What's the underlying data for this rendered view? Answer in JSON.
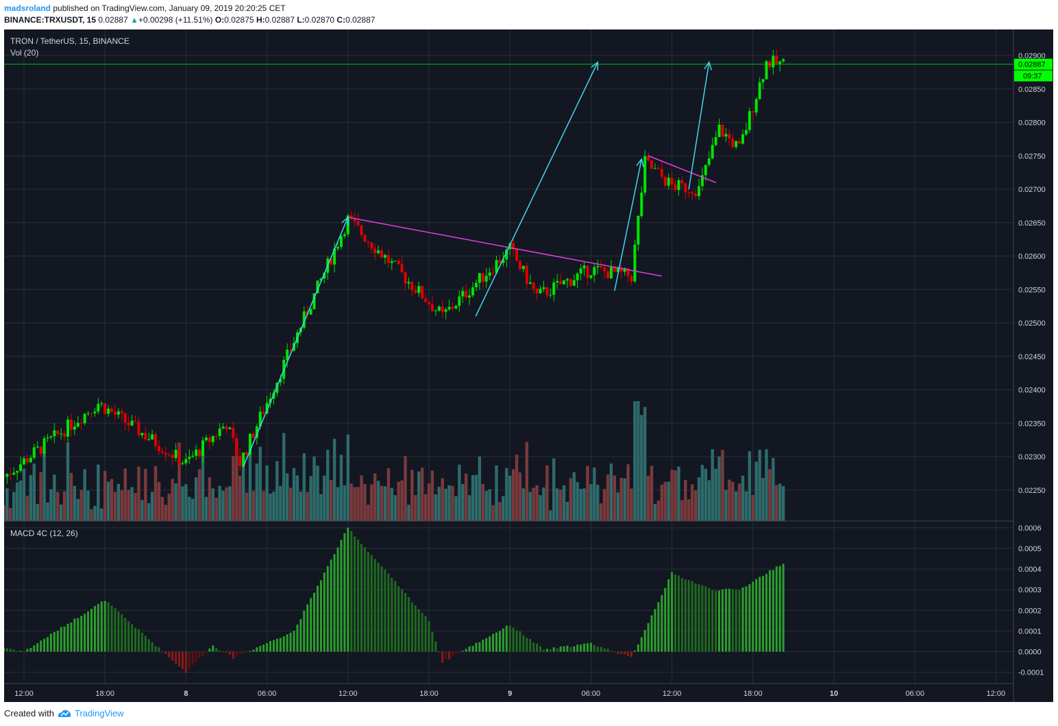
{
  "header": {
    "author": "madsroland",
    "published": "published on TradingView.com, January 09, 2019 20:20:25 CET",
    "symbol": "BINANCE:TRXUSDT, 15",
    "last": "0.02887",
    "change_arrow": "▲",
    "change": "+0.00298 (+11.51%)",
    "o_label": "O:",
    "o": "0.02875",
    "h_label": "H:",
    "h": "0.02887",
    "l_label": "L:",
    "l": "0.02870",
    "c_label": "C:",
    "c": "0.02887"
  },
  "footer": {
    "created": "Created with",
    "brand": "TradingView"
  },
  "colors": {
    "background": "#131722",
    "grid": "#2a2e39",
    "up": "#00e500",
    "down": "#e00000",
    "vol_up": "#2e6b6b",
    "vol_down": "#7a3a3d",
    "macd_up": "#2ca02c",
    "macd_down": "#8b1a1a",
    "price_line": "#00ff00",
    "trend": "#e040e0",
    "arrow": "#3fd8f0"
  },
  "chart_data": {
    "type": "candlestick",
    "title": "TRON / TetherUS, 15, BINANCE",
    "volume_label": "Vol (20)",
    "macd_label": "MACD 4C (12, 26)",
    "ylim": [
      0.0221,
      0.0291
    ],
    "y_ticks": [
      "0.02900",
      "0.02850",
      "0.02800",
      "0.02750",
      "0.02700",
      "0.02650",
      "0.02600",
      "0.02550",
      "0.02500",
      "0.02450",
      "0.02400",
      "0.02350",
      "0.02300",
      "0.02250"
    ],
    "macd_ylim": [
      -0.00015,
      0.00061
    ],
    "macd_ticks": [
      "0.0006",
      "0.0005",
      "0.0004",
      "0.0003",
      "0.0002",
      "0.0001",
      "0.0000",
      "-0.0001"
    ],
    "x_ticks": [
      "12:00",
      "18:00",
      "8",
      "06:00",
      "12:00",
      "18:00",
      "9",
      "06:00",
      "12:00",
      "18:00",
      "10",
      "06:00",
      "12:00"
    ],
    "last_price": "0.02887",
    "countdown": "09:37",
    "key_closes": [
      {
        "time": "Jan 7 10:30",
        "close": 0.0227
      },
      {
        "time": "Jan 7 17:30",
        "close": 0.0238
      },
      {
        "time": "Jan 8 00:00",
        "close": 0.0229
      },
      {
        "time": "Jan 8 03:00",
        "close": 0.0235
      },
      {
        "time": "Jan 8 04:00",
        "close": 0.0229
      },
      {
        "time": "Jan 8 12:00",
        "close": 0.02655
      },
      {
        "time": "Jan 8 19:00",
        "close": 0.0251
      },
      {
        "time": "Jan 9 00:00",
        "close": 0.0261
      },
      {
        "time": "Jan 9 02:00",
        "close": 0.0254
      },
      {
        "time": "Jan 9 06:00",
        "close": 0.0258
      },
      {
        "time": "Jan 9 09:00",
        "close": 0.0257
      },
      {
        "time": "Jan 9 10:00",
        "close": 0.0274
      },
      {
        "time": "Jan 9 12:00",
        "close": 0.02705
      },
      {
        "time": "Jan 9 14:00",
        "close": 0.027
      },
      {
        "time": "Jan 9 15:30",
        "close": 0.0279
      },
      {
        "time": "Jan 9 17:00",
        "close": 0.0276
      },
      {
        "time": "Jan 9 19:00",
        "close": 0.0289
      },
      {
        "time": "Jan 9 20:15",
        "close": 0.02887
      }
    ],
    "macd_key": [
      {
        "time": "Jan 7 10:30",
        "value": 2e-05
      },
      {
        "time": "Jan 7 12:00",
        "value": 0.0
      },
      {
        "time": "Jan 7 18:00",
        "value": 0.00025
      },
      {
        "time": "Jan 8 00:00",
        "value": -0.0001
      },
      {
        "time": "Jan 8 02:00",
        "value": 3e-05
      },
      {
        "time": "Jan 8 03:30",
        "value": -3e-05
      },
      {
        "time": "Jan 8 08:00",
        "value": 0.0001
      },
      {
        "time": "Jan 8 12:00",
        "value": 0.0006
      },
      {
        "time": "Jan 8 18:00",
        "value": 0.00015
      },
      {
        "time": "Jan 8 19:00",
        "value": -5e-05
      },
      {
        "time": "Jan 9 00:00",
        "value": 0.00013
      },
      {
        "time": "Jan 9 02:30",
        "value": 1e-05
      },
      {
        "time": "Jan 9 06:00",
        "value": 4e-05
      },
      {
        "time": "Jan 9 09:00",
        "value": -3e-05
      },
      {
        "time": "Jan 9 12:00",
        "value": 0.00038
      },
      {
        "time": "Jan 9 15:00",
        "value": 0.0003
      },
      {
        "time": "Jan 9 17:00",
        "value": 0.0003
      },
      {
        "time": "Jan 9 20:15",
        "value": 0.00043
      }
    ],
    "trendlines": [
      {
        "from": {
          "time": "Jan 8 12:00",
          "price": 0.02658
        },
        "to": {
          "time": "Jan 9 11:15",
          "price": 0.0257
        }
      },
      {
        "from": {
          "time": "Jan 9 10:15",
          "price": 0.0275
        },
        "to": {
          "time": "Jan 9 15:15",
          "price": 0.0271
        }
      }
    ],
    "arrows": [
      {
        "from": {
          "time": "Jan 8 04:15",
          "price": 0.02285
        },
        "to": {
          "time": "Jan 8 12:00",
          "price": 0.02658
        }
      },
      {
        "from": {
          "time": "Jan 9 22:30",
          "price": 0.0251
        },
        "to": {
          "time": "Jan 9 06:30",
          "price": 0.0289
        }
      },
      {
        "from": {
          "time": "Jan 9 07:45",
          "price": 0.02548
        },
        "to": {
          "time": "Jan 9 09:45",
          "price": 0.02745
        }
      },
      {
        "from": {
          "time": "Jan 9 13:15",
          "price": 0.027
        },
        "to": {
          "time": "Jan 9 14:45",
          "price": 0.0289
        }
      }
    ]
  }
}
